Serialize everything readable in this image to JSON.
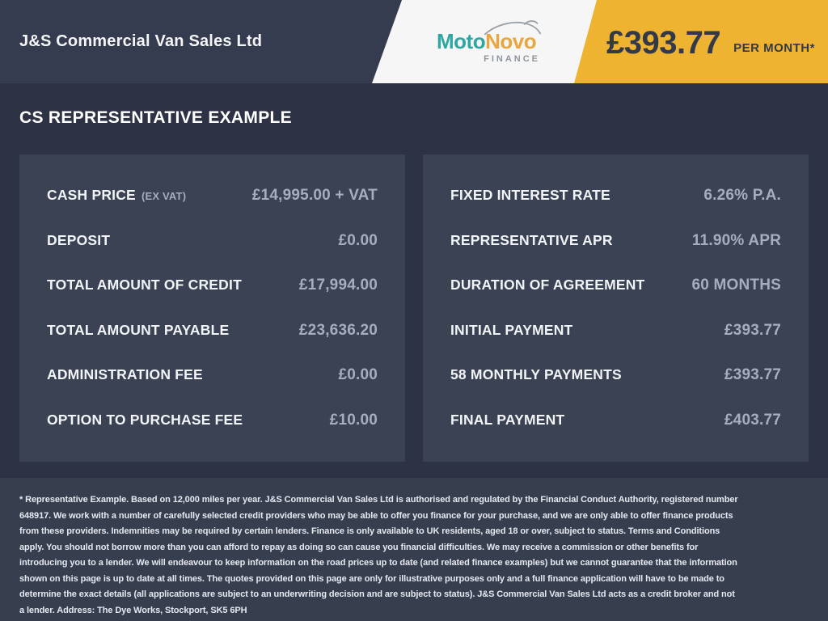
{
  "header": {
    "dealer_name": "J&S Commercial Van Sales Ltd",
    "logo": {
      "moto": "Moto",
      "novo": "Novo",
      "finance": "FINANCE"
    },
    "monthly_price": "£393.77",
    "monthly_price_suffix": "PER MONTH*"
  },
  "main": {
    "heading": "CS REPRESENTATIVE EXAMPLE",
    "left_panel": {
      "rows": [
        {
          "label": "CASH PRICE",
          "sublabel": "(EX VAT)",
          "value": "£14,995.00 + VAT"
        },
        {
          "label": "DEPOSIT",
          "sublabel": "",
          "value": "£0.00"
        },
        {
          "label": "TOTAL AMOUNT OF CREDIT",
          "sublabel": "",
          "value": "£17,994.00"
        },
        {
          "label": "TOTAL AMOUNT PAYABLE",
          "sublabel": "",
          "value": "£23,636.20"
        },
        {
          "label": "ADMINISTRATION FEE",
          "sublabel": "",
          "value": "£0.00"
        },
        {
          "label": "OPTION TO PURCHASE FEE",
          "sublabel": "",
          "value": "£10.00"
        }
      ]
    },
    "right_panel": {
      "rows": [
        {
          "label": "FIXED INTEREST RATE",
          "sublabel": "",
          "value": "6.26% P.A."
        },
        {
          "label": "REPRESENTATIVE APR",
          "sublabel": "",
          "value": "11.90% APR"
        },
        {
          "label": "DURATION OF AGREEMENT",
          "sublabel": "",
          "value": "60 MONTHS"
        },
        {
          "label": "INITIAL PAYMENT",
          "sublabel": "",
          "value": "£393.77"
        },
        {
          "label": "58 MONTHLY PAYMENTS",
          "sublabel": "",
          "value": "£393.77"
        },
        {
          "label": "FINAL PAYMENT",
          "sublabel": "",
          "value": "£403.77"
        }
      ]
    }
  },
  "footer": {
    "disclaimer": "* Representative Example. Based on 12,000 miles per year. J&S Commercial Van Sales Ltd is authorised and regulated by the Financial Conduct Authority, registered number 648917. We work with a number of carefully selected credit providers who may be able to offer you finance for your purchase, and we are only able to offer finance products from these providers. Indemnities may be required by certain lenders. Finance is only available to UK residents, aged 18 or over, subject to status. Terms and Conditions apply. You should not borrow more than you can afford to repay as doing so can cause you financial difficulties. We may receive a commission or other benefits for introducing you to a lender. We will endeavour to keep information on the road prices up to date (and related finance examples) but we cannot guarantee that the information shown on this page is up to date at all times. The quotes provided on this page are only for illustrative purposes only and a full finance application will have to be made to determine the exact details (all applications are subject to an underwriting decision and are subject to status). J&S Commercial Van Sales Ltd acts as a credit broker and not a lender. Address: The Dye Works, Stockport, SK5 6PH"
  },
  "colors": {
    "header_bg": "#363c4f",
    "main_bg": "#2d3344",
    "panel_bg": "#3b4254",
    "footer_bg": "#373e4e",
    "accent_yellow": "#edb331",
    "logo_teal": "#2ea7a3",
    "logo_orange": "#eaa63e",
    "label_text": "#f2f4f7",
    "value_text": "#a7adbe"
  }
}
